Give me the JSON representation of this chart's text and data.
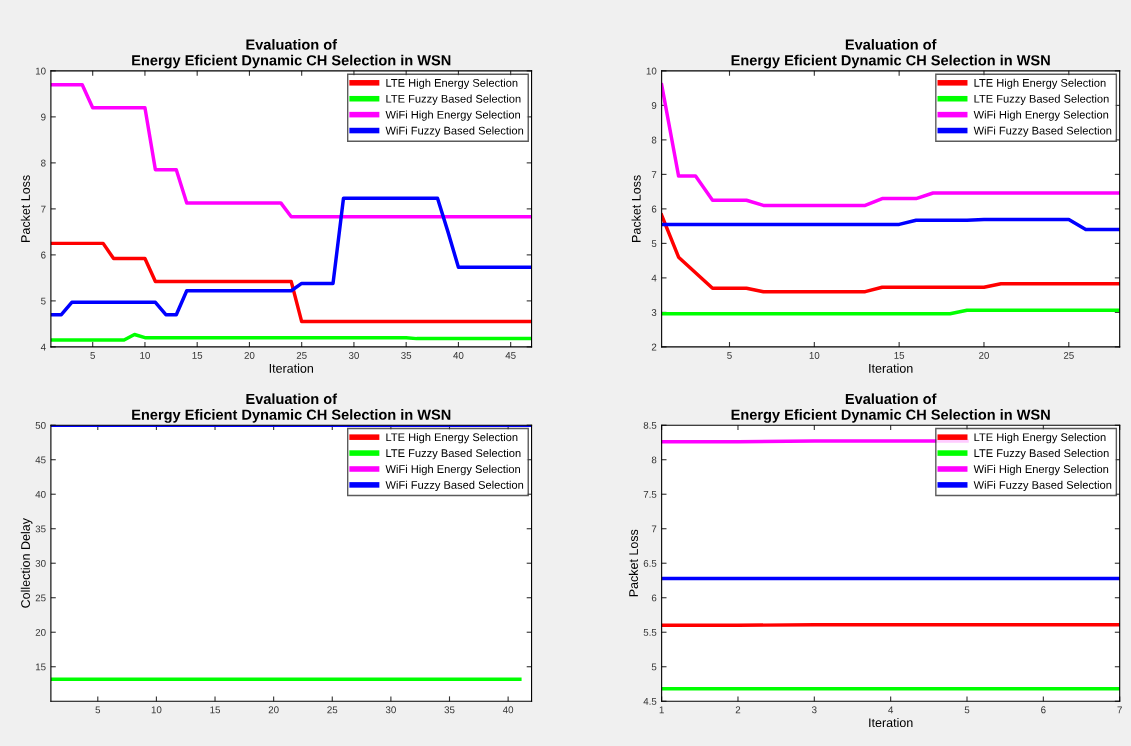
{
  "chart_data": [
    {
      "type": "line",
      "title": "Evaluation of\nEnergy Eficient Dynamic CH Selection in WSN",
      "xlabel": "Iteration",
      "ylabel": "Packet Loss",
      "xlim": [
        1,
        47
      ],
      "ylim": [
        4,
        10
      ],
      "xticks": [
        5,
        10,
        15,
        20,
        25,
        30,
        35,
        40,
        45
      ],
      "yticks": [
        4,
        5,
        6,
        7,
        8,
        9,
        10
      ],
      "legend": "top right",
      "grid": false,
      "marker": "none",
      "line_style": "solid",
      "series": [
        {
          "name": "LTE High Energy Selection",
          "color": "#ff0000",
          "x": [
            1,
            6,
            7,
            10,
            11,
            24,
            25,
            47
          ],
          "values": [
            6.25,
            6.25,
            5.92,
            5.92,
            5.42,
            5.42,
            4.55,
            4.55
          ]
        },
        {
          "name": "LTE Fuzzy Based Selection",
          "color": "#00ff00",
          "x": [
            1,
            8,
            9,
            10,
            35,
            36,
            47
          ],
          "values": [
            4.15,
            4.15,
            4.27,
            4.2,
            4.2,
            4.18,
            4.18
          ]
        },
        {
          "name": "WiFi High Energy Selection",
          "color": "#ff00ff",
          "x": [
            1,
            4,
            5,
            10,
            11,
            13,
            14,
            23,
            24,
            47
          ],
          "values": [
            9.7,
            9.7,
            9.2,
            9.2,
            7.85,
            7.85,
            7.13,
            7.13,
            6.83,
            6.83
          ]
        },
        {
          "name": "WiFi Fuzzy Based Selection",
          "color": "#0000ff",
          "x": [
            1,
            2,
            3,
            11,
            12,
            13,
            14,
            24,
            25,
            28,
            29,
            38,
            39,
            40,
            47
          ],
          "values": [
            4.7,
            4.7,
            4.97,
            4.97,
            4.7,
            4.7,
            5.22,
            5.22,
            5.38,
            5.38,
            7.23,
            7.23,
            6.5,
            5.73,
            5.73
          ]
        }
      ]
    },
    {
      "type": "line",
      "title": "Evaluation of\nEnergy Eficient Dynamic CH Selection in WSN",
      "xlabel": "Iteration",
      "ylabel": "Packet Loss",
      "xlim": [
        1,
        28
      ],
      "ylim": [
        2,
        10
      ],
      "xticks": [
        5,
        10,
        15,
        20,
        25
      ],
      "yticks": [
        2,
        3,
        4,
        5,
        6,
        7,
        8,
        9,
        10
      ],
      "legend": "top right",
      "grid": false,
      "marker": "none",
      "line_style": "solid",
      "series": [
        {
          "name": "LTE High Energy Selection",
          "color": "#ff0000",
          "x": [
            1,
            2,
            4,
            6,
            7,
            13,
            14,
            20,
            21,
            28
          ],
          "values": [
            5.82,
            4.6,
            3.7,
            3.7,
            3.6,
            3.6,
            3.73,
            3.73,
            3.83,
            3.83
          ]
        },
        {
          "name": "LTE Fuzzy Based Selection",
          "color": "#00ff00",
          "x": [
            1,
            18,
            19,
            28
          ],
          "values": [
            2.96,
            2.96,
            3.06,
            3.06
          ]
        },
        {
          "name": "WiFi High Energy Selection",
          "color": "#ff00ff",
          "x": [
            1,
            2,
            3,
            4,
            6,
            7,
            13,
            14,
            16,
            17,
            28
          ],
          "values": [
            9.6,
            6.95,
            6.95,
            6.25,
            6.25,
            6.1,
            6.1,
            6.3,
            6.3,
            6.46,
            6.46
          ]
        },
        {
          "name": "WiFi Fuzzy Based Selection",
          "color": "#0000ff",
          "x": [
            1,
            15,
            16,
            19,
            20,
            25,
            26,
            28
          ],
          "values": [
            5.55,
            5.55,
            5.67,
            5.67,
            5.69,
            5.69,
            5.4,
            5.4
          ]
        }
      ]
    },
    {
      "type": "line",
      "title": "Evaluation of\nEnergy Eficient Dynamic CH Selection in WSN",
      "ylabel": "Collection Delay",
      "xlim": [
        1,
        42
      ],
      "ylim": [
        10,
        50
      ],
      "xticks": [
        5,
        10,
        15,
        20,
        25,
        30,
        35,
        40
      ],
      "yticks": [
        15,
        20,
        25,
        30,
        35,
        40,
        45,
        50
      ],
      "legend": "top right",
      "grid": false,
      "marker": "none",
      "line_style": "solid",
      "series": [
        {
          "name": "LTE High Energy Selection",
          "color": "#ff0000"
        },
        {
          "name": "LTE Fuzzy Based Selection",
          "color": "#00ff00",
          "x": [
            1,
            41
          ],
          "values": [
            13.2,
            13.2
          ]
        },
        {
          "name": "WiFi High Energy Selection",
          "color": "#ff00ff"
        },
        {
          "name": "WiFi Fuzzy Based Selection",
          "color": "#0000ff",
          "x": [
            1,
            42
          ],
          "values": [
            50,
            50
          ]
        }
      ]
    },
    {
      "type": "line",
      "title": "Evaluation of\nEnergy Eficient Dynamic CH Selection in WSN",
      "xlabel": "Iteration",
      "ylabel": "Packet Loss",
      "xlim": [
        1,
        7
      ],
      "ylim": [
        4.5,
        8.5
      ],
      "xticks": [
        1,
        2,
        3,
        4,
        5,
        6,
        7
      ],
      "yticks": [
        4.5,
        5,
        5.5,
        6,
        6.5,
        7,
        7.5,
        8,
        8.5
      ],
      "legend": "top right",
      "grid": false,
      "marker": "none",
      "line_style": "solid",
      "series": [
        {
          "name": "LTE High Energy Selection",
          "color": "#ff0000",
          "x": [
            1,
            2,
            3,
            4,
            5,
            6,
            7
          ],
          "values": [
            5.6,
            5.6,
            5.61,
            5.61,
            5.61,
            5.61,
            5.61
          ]
        },
        {
          "name": "LTE Fuzzy Based Selection",
          "color": "#00ff00",
          "x": [
            1,
            2,
            3,
            4,
            5,
            6,
            7
          ],
          "values": [
            4.68,
            4.68,
            4.68,
            4.68,
            4.68,
            4.68,
            4.68
          ]
        },
        {
          "name": "WiFi High Energy Selection",
          "color": "#ff00ff",
          "x": [
            1,
            2,
            3,
            4,
            5
          ],
          "values": [
            8.26,
            8.26,
            8.27,
            8.27,
            8.27
          ]
        },
        {
          "name": "WiFi Fuzzy Based Selection",
          "color": "#0000ff",
          "x": [
            1,
            2,
            3,
            4,
            5,
            6,
            7
          ],
          "values": [
            6.28,
            6.28,
            6.28,
            6.28,
            6.28,
            6.28,
            6.28
          ]
        }
      ]
    }
  ]
}
